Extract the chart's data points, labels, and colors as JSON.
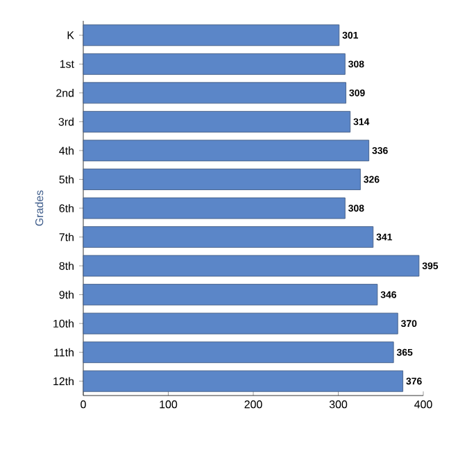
{
  "chart_data": {
    "type": "bar",
    "orientation": "horizontal",
    "ylabel": "Grades",
    "categories": [
      "K",
      "1st",
      "2nd",
      "3rd",
      "4th",
      "5th",
      "6th",
      "7th",
      "8th",
      "9th",
      "10th",
      "11th",
      "12th"
    ],
    "values": [
      301,
      308,
      309,
      314,
      336,
      326,
      308,
      341,
      395,
      346,
      370,
      365,
      376
    ],
    "color": "#5b86c8",
    "xlim": [
      0,
      400
    ],
    "xticks": [
      0,
      100,
      200,
      300,
      400
    ],
    "data_labels": true,
    "grid": false
  }
}
